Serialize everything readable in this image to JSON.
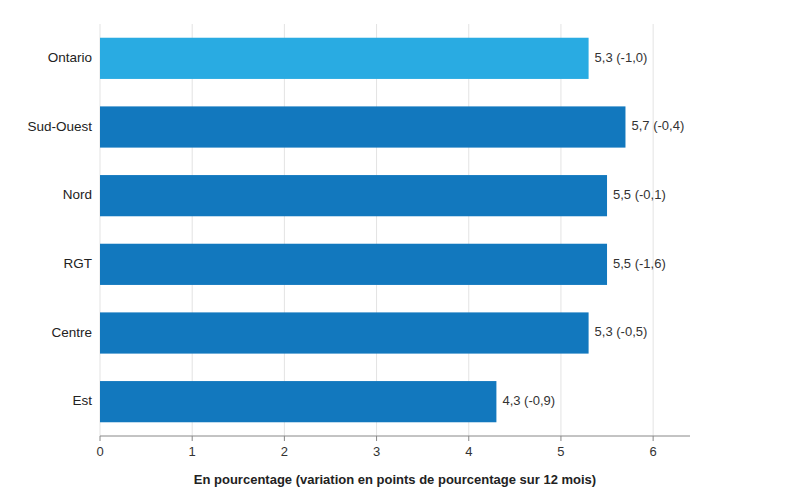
{
  "chart_data": {
    "type": "bar",
    "orientation": "horizontal",
    "categories": [
      "Ontario",
      "Sud-Ouest",
      "Nord",
      "RGT",
      "Centre",
      "Est"
    ],
    "values": [
      5.3,
      5.7,
      5.5,
      5.5,
      5.3,
      4.3
    ],
    "value_labels": [
      "5,3 (-1,0)",
      "5,7 (-0,4)",
      "5,5 (-0,1)",
      "5,5 (-1,6)",
      "5,3 (-0,5)",
      "4,3 (-0,9)"
    ],
    "data_labels": true,
    "colors": [
      "#29ABE2",
      "#1278BE",
      "#1278BE",
      "#1278BE",
      "#1278BE",
      "#1278BE"
    ],
    "xlabel": "En pourcentage (variation en points de pourcentage sur 12 mois)",
    "xlim": [
      0,
      6.4
    ],
    "xticks": [
      0,
      1,
      2,
      3,
      4,
      5,
      6
    ],
    "grid": true
  }
}
